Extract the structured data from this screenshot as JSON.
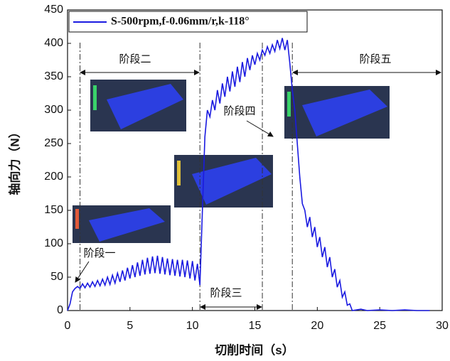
{
  "chart_data": {
    "type": "line",
    "x_label": "切削时间（s）",
    "y_label": "轴向力（N）",
    "xlim": [
      0,
      30
    ],
    "xticks": [
      0,
      5,
      10,
      15,
      20,
      25,
      30
    ],
    "ylim": [
      0,
      450
    ],
    "yticks": [
      0,
      50,
      100,
      150,
      200,
      250,
      300,
      350,
      400,
      450
    ],
    "legend": "upper left",
    "phase_lines": [
      1,
      10.6,
      15.6,
      18
    ],
    "annotations": [
      "阶段一",
      "阶段二",
      "阶段三",
      "阶段四",
      "阶段五"
    ],
    "x": [
      0,
      0.2,
      0.4,
      0.6,
      0.8,
      1.0,
      1.2,
      1.4,
      1.6,
      1.8,
      2.0,
      2.2,
      2.4,
      2.6,
      2.8,
      3.0,
      3.2,
      3.4,
      3.6,
      3.8,
      4.0,
      4.2,
      4.4,
      4.6,
      4.8,
      5.0,
      5.2,
      5.4,
      5.6,
      5.8,
      6.0,
      6.2,
      6.4,
      6.6,
      6.8,
      7.0,
      7.2,
      7.4,
      7.6,
      7.8,
      8.0,
      8.2,
      8.4,
      8.6,
      8.8,
      9.0,
      9.2,
      9.4,
      9.6,
      9.8,
      10.0,
      10.2,
      10.4,
      10.6,
      10.8,
      11.0,
      11.2,
      11.4,
      11.6,
      11.8,
      12.0,
      12.2,
      12.4,
      12.6,
      12.8,
      13.0,
      13.2,
      13.4,
      13.6,
      13.8,
      14.0,
      14.2,
      14.4,
      14.6,
      14.8,
      15.0,
      15.2,
      15.4,
      15.6,
      15.8,
      16.0,
      16.2,
      16.4,
      16.6,
      16.8,
      17.0,
      17.2,
      17.4,
      17.6,
      17.8,
      18.0,
      18.2,
      18.4,
      18.6,
      18.8,
      19.0,
      19.2,
      19.4,
      19.6,
      19.8,
      20.0,
      20.2,
      20.4,
      20.6,
      20.8,
      21.0,
      21.2,
      21.4,
      21.6,
      21.8,
      22.0,
      22.2,
      22.4,
      22.6,
      22.8,
      23.5,
      24,
      25,
      26,
      27,
      28,
      29
    ],
    "series": [
      {
        "name": "S-500rpm,f-0.06mm/r,k-118°",
        "color": "#1a1ae0",
        "values": [
          0,
          10,
          28,
          33,
          36,
          33,
          40,
          34,
          41,
          35,
          43,
          36,
          45,
          37,
          47,
          38,
          50,
          39,
          53,
          41,
          56,
          43,
          60,
          45,
          64,
          48,
          68,
          50,
          72,
          52,
          76,
          54,
          79,
          55,
          81,
          56,
          82,
          55,
          80,
          54,
          78,
          53,
          77,
          52,
          76,
          51,
          76,
          50,
          75,
          48,
          74,
          45,
          70,
          38,
          150,
          260,
          300,
          290,
          315,
          300,
          330,
          310,
          340,
          320,
          350,
          328,
          358,
          335,
          365,
          342,
          372,
          350,
          378,
          360,
          382,
          368,
          385,
          375,
          390,
          382,
          395,
          385,
          398,
          388,
          405,
          392,
          408,
          390,
          405,
          370,
          330,
          300,
          250,
          200,
          160,
          150,
          125,
          140,
          110,
          125,
          95,
          110,
          80,
          95,
          65,
          80,
          50,
          62,
          35,
          45,
          20,
          28,
          8,
          10,
          0,
          2,
          0,
          1,
          0,
          1,
          0,
          0
        ]
      }
    ]
  }
}
